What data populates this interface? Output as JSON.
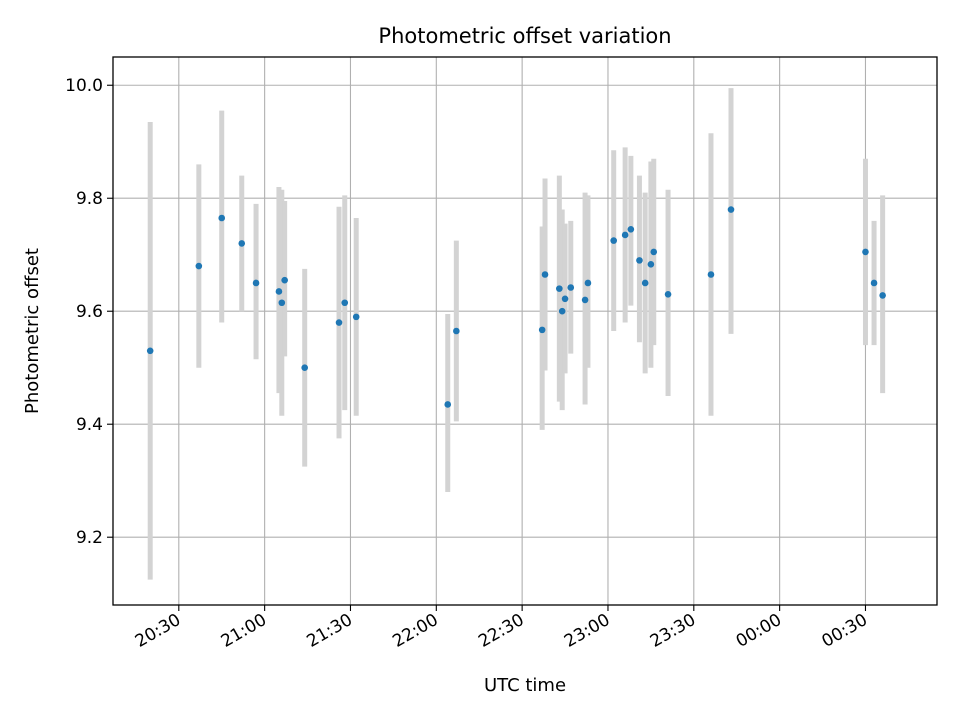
{
  "chart_data": {
    "type": "scatter",
    "title": "Photometric offset variation",
    "xlabel": "UTC time",
    "ylabel": "Photometric offset",
    "x_axis": {
      "kind": "time",
      "range": [
        "20:07",
        "00:55"
      ],
      "ticks": [
        "20:30",
        "21:00",
        "21:30",
        "22:00",
        "22:30",
        "23:00",
        "23:30",
        "00:00",
        "00:30"
      ]
    },
    "y_axis": {
      "range": [
        9.08,
        10.05
      ],
      "ticks": [
        9.2,
        9.4,
        9.6,
        9.8,
        10.0
      ],
      "tick_labels": [
        "9.2",
        "9.4",
        "9.6",
        "9.8",
        "10.0"
      ]
    },
    "grid": true,
    "colors": {
      "point": "#1f77b4",
      "errorbar": "#d3d3d3",
      "grid": "#b0b0b0"
    },
    "points": [
      {
        "x": "20:20",
        "y": 9.53,
        "low": 9.125,
        "high": 9.935
      },
      {
        "x": "20:37",
        "y": 9.68,
        "low": 9.5,
        "high": 9.86
      },
      {
        "x": "20:45",
        "y": 9.765,
        "low": 9.58,
        "high": 9.955
      },
      {
        "x": "20:52",
        "y": 9.72,
        "low": 9.6,
        "high": 9.84
      },
      {
        "x": "20:57",
        "y": 9.65,
        "low": 9.515,
        "high": 9.79
      },
      {
        "x": "21:05",
        "y": 9.635,
        "low": 9.455,
        "high": 9.82
      },
      {
        "x": "21:06",
        "y": 9.615,
        "low": 9.415,
        "high": 9.815
      },
      {
        "x": "21:07",
        "y": 9.655,
        "low": 9.52,
        "high": 9.795
      },
      {
        "x": "21:14",
        "y": 9.5,
        "low": 9.325,
        "high": 9.675
      },
      {
        "x": "21:26",
        "y": 9.58,
        "low": 9.375,
        "high": 9.785
      },
      {
        "x": "21:28",
        "y": 9.615,
        "low": 9.425,
        "high": 9.805
      },
      {
        "x": "21:32",
        "y": 9.59,
        "low": 9.415,
        "high": 9.765
      },
      {
        "x": "22:04",
        "y": 9.435,
        "low": 9.28,
        "high": 9.595
      },
      {
        "x": "22:07",
        "y": 9.565,
        "low": 9.405,
        "high": 9.725
      },
      {
        "x": "22:37",
        "y": 9.567,
        "low": 9.39,
        "high": 9.75
      },
      {
        "x": "22:38",
        "y": 9.665,
        "low": 9.495,
        "high": 9.835
      },
      {
        "x": "22:43",
        "y": 9.64,
        "low": 9.44,
        "high": 9.84
      },
      {
        "x": "22:44",
        "y": 9.6,
        "low": 9.425,
        "high": 9.78
      },
      {
        "x": "22:45",
        "y": 9.622,
        "low": 9.49,
        "high": 9.755
      },
      {
        "x": "22:47",
        "y": 9.642,
        "low": 9.525,
        "high": 9.76
      },
      {
        "x": "22:52",
        "y": 9.62,
        "low": 9.435,
        "high": 9.81
      },
      {
        "x": "22:53",
        "y": 9.65,
        "low": 9.5,
        "high": 9.805
      },
      {
        "x": "23:02",
        "y": 9.725,
        "low": 9.565,
        "high": 9.885
      },
      {
        "x": "23:06",
        "y": 9.735,
        "low": 9.58,
        "high": 9.89
      },
      {
        "x": "23:08",
        "y": 9.745,
        "low": 9.61,
        "high": 9.875
      },
      {
        "x": "23:11",
        "y": 9.69,
        "low": 9.545,
        "high": 9.84
      },
      {
        "x": "23:13",
        "y": 9.65,
        "low": 9.49,
        "high": 9.81
      },
      {
        "x": "23:15",
        "y": 9.683,
        "low": 9.5,
        "high": 9.865
      },
      {
        "x": "23:16",
        "y": 9.705,
        "low": 9.54,
        "high": 9.87
      },
      {
        "x": "23:21",
        "y": 9.63,
        "low": 9.45,
        "high": 9.815
      },
      {
        "x": "23:36",
        "y": 9.665,
        "low": 9.415,
        "high": 9.915
      },
      {
        "x": "23:43",
        "y": 9.78,
        "low": 9.56,
        "high": 9.995
      },
      {
        "x": "00:30",
        "y": 9.705,
        "low": 9.54,
        "high": 9.87
      },
      {
        "x": "00:33",
        "y": 9.65,
        "low": 9.54,
        "high": 9.76
      },
      {
        "x": "00:36",
        "y": 9.628,
        "low": 9.455,
        "high": 9.805
      }
    ]
  }
}
